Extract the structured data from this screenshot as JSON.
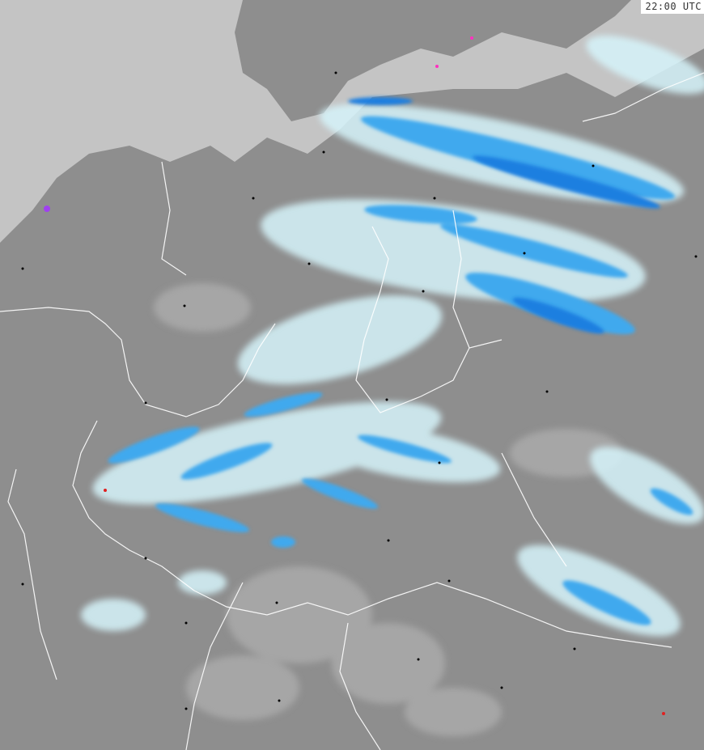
{
  "map": {
    "timestamp": "22:00 UTC",
    "colors": {
      "sea": "#c4c4c4",
      "land": "#8e8e8e",
      "highlands": "#a6a6a6",
      "light_precip": "#d6f4fb",
      "moderate_precip": "#3fa9ee",
      "heavy_precip": "#1a7fe0",
      "border": "#ffffff"
    }
  }
}
